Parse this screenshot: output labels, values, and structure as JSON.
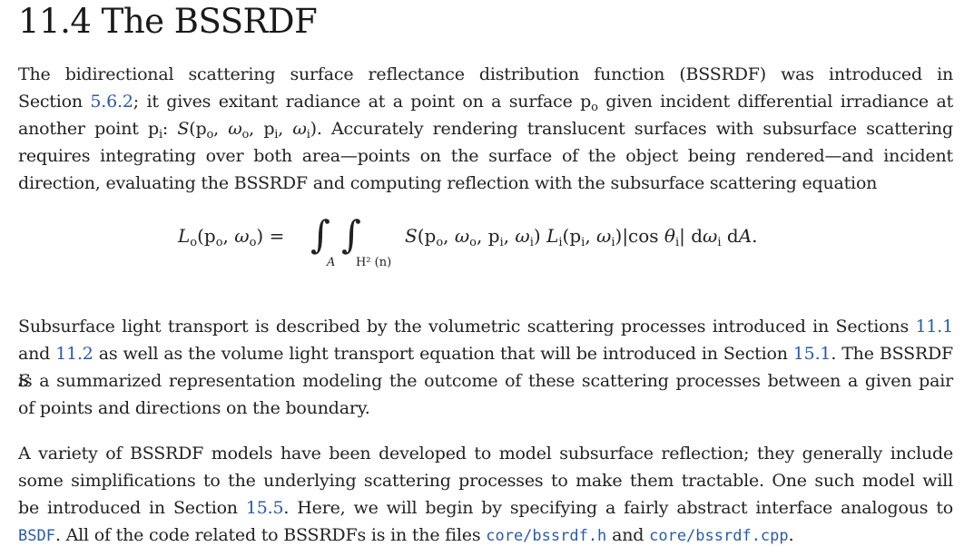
{
  "heading": "11.4 The BSSRDF",
  "p1": {
    "line1": "The bidirectional scattering surface reflectance distribution function (BSSRDF) was introduced in",
    "line2a": "Section ",
    "line2_ref": "5.6.2",
    "line2b": "; it gives exitant radiance at a point on a surface p",
    "line2_sub": "o",
    "line2c": " given incident differential irradiance at",
    "line3a": "another point p",
    "line3_sub": "i",
    "line3b": ": S(p",
    "line3c": "). Accurately rendering translucent surfaces with subsurface scattering",
    "line4": "requires integrating over both area—points on the surface of the object being rendered—and incident",
    "line5": "direction, evaluating the BSSRDF and computing reflection with the subsurface scattering equation"
  },
  "equation": {
    "lhs": "L",
    "lhs_sub": "o",
    "lhs_args": "(p",
    "equals": "=",
    "integral": "∫",
    "lower_A": "A",
    "lower_H": "H² (n)",
    "body": "S(p"
  },
  "p2": {
    "line1a": "Subsurface light transport is described by the volumetric scattering processes introduced in Sections ",
    "line1_ref": "11.1",
    "line2a": "and ",
    "line2_ref1": "11.2",
    "line2b": " as well as the volume light transport equation that will be introduced in Section ",
    "line2_ref2": "15.1",
    "line2c": ". The BSSRDF ",
    "line2_S": "S",
    "line3": "is a summarized representation modeling the outcome of these scattering processes between a given pair",
    "line4": "of points and directions on the boundary."
  },
  "p3": {
    "line1": "A variety of BSSRDF models have been developed to model subsurface reflection; they generally include",
    "line2": "some simplifications to the underlying scattering processes to make them tractable. One such model will",
    "line3a": "be introduced in Section ",
    "line3_ref": "15.5",
    "line3b": ". Here, we will begin by specifying a fairly abstract interface analogous to",
    "line4_ref": "BSDF",
    "line4a": ". All of the code related to BSSRDFs is in the files ",
    "line4_file1": "core/bssrdf.h",
    "line4b": " and ",
    "line4_file2": "core/bssrdf.cpp",
    "line4c": "."
  },
  "colors": {
    "text": "#222222",
    "link": "#2a5ba8",
    "background": "#ffffff"
  }
}
